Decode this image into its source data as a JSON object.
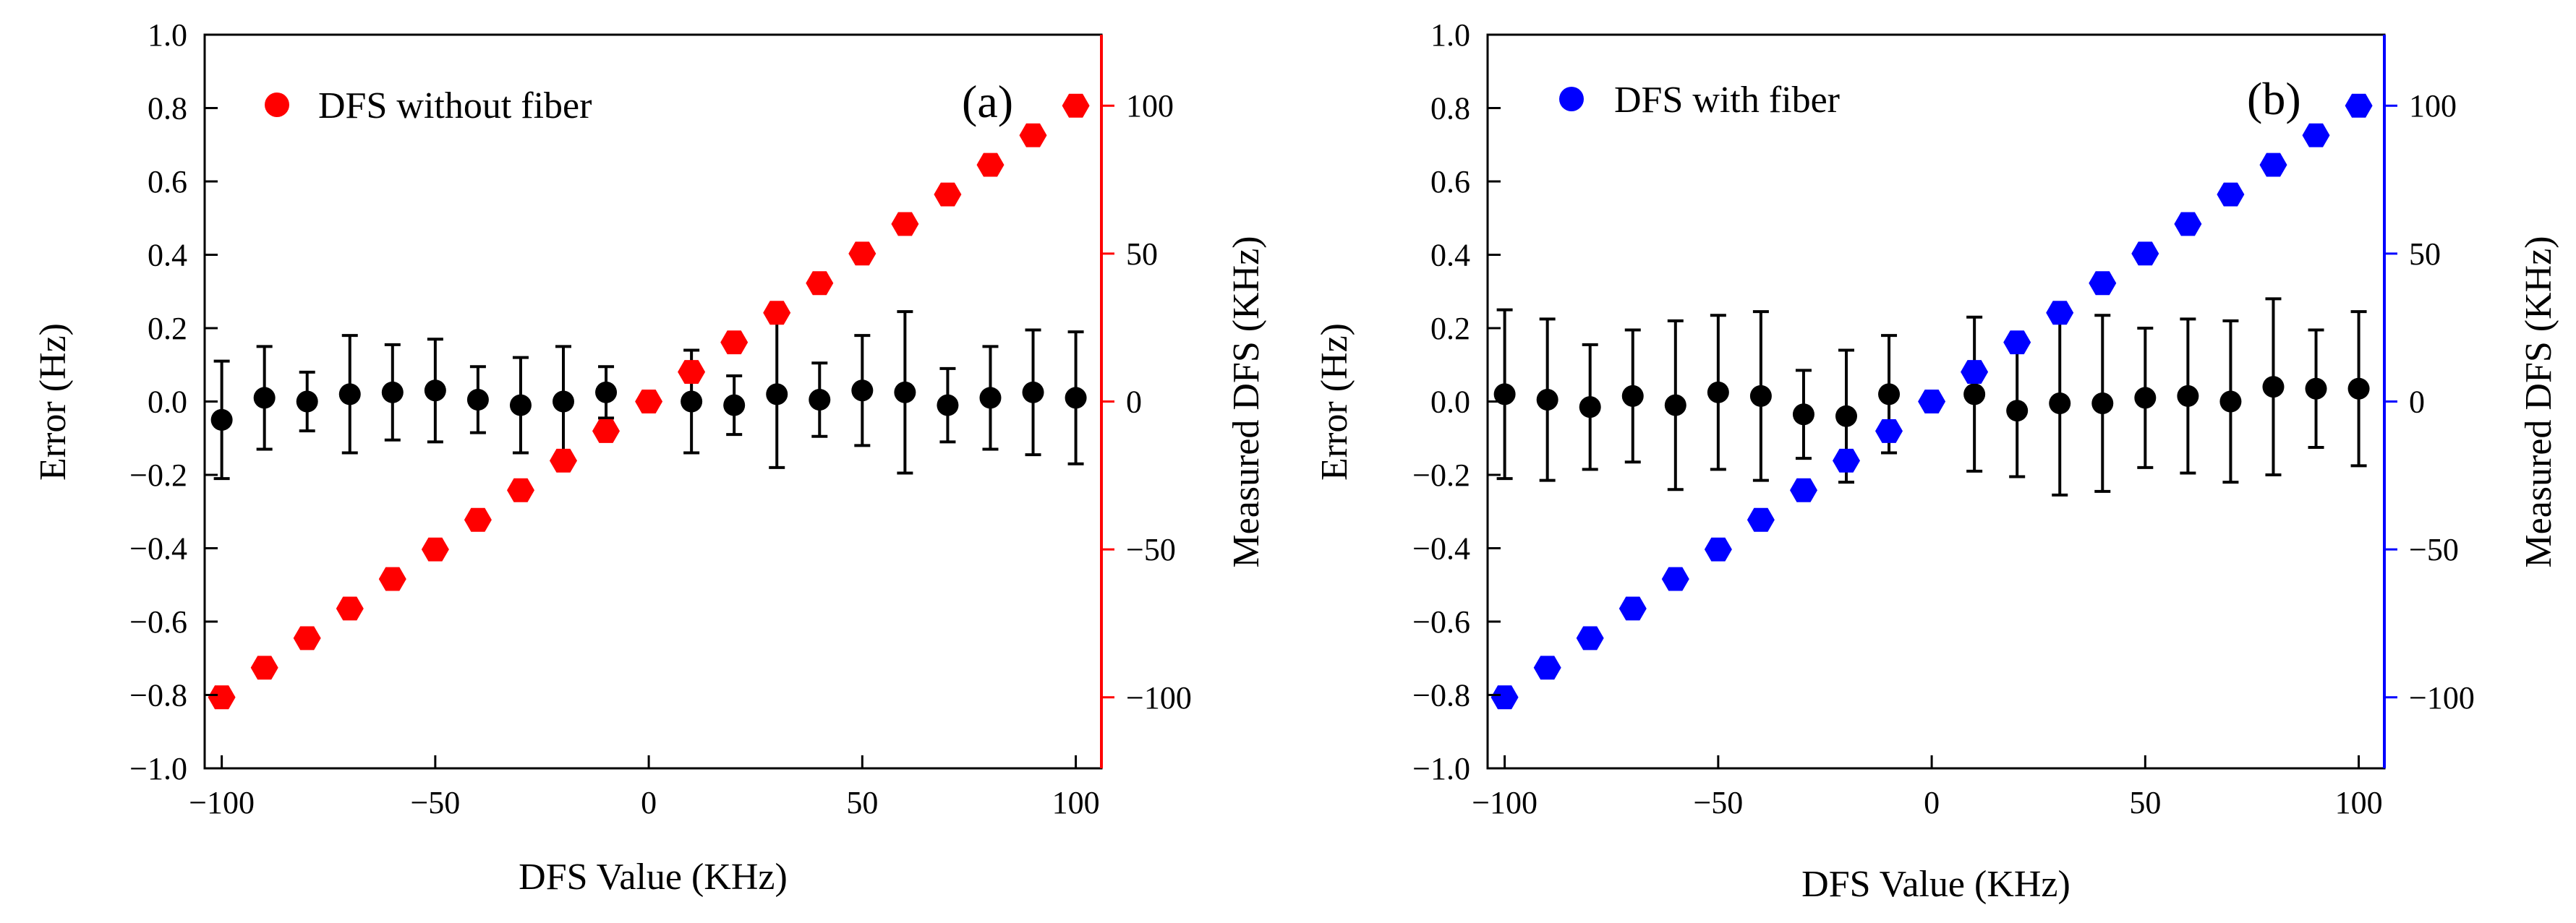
{
  "chart_data": [
    {
      "type": "scatter",
      "panel_label": "(a)",
      "xlabel": "DFS Value (KHz)",
      "ylabel": "Error (Hz)",
      "y2label": "Measured DFS (KHz)",
      "xlim": [
        -104,
        106
      ],
      "ylim": [
        -1.0,
        1.0
      ],
      "y2lim": [
        -124,
        124
      ],
      "xticks": [
        -100,
        -50,
        0,
        50,
        100
      ],
      "xtick_labels": [
        "−100",
        "−50",
        "0",
        "50",
        "100"
      ],
      "yticks": [
        -1.0,
        -0.8,
        -0.6,
        -0.4,
        -0.2,
        0.0,
        0.2,
        0.4,
        0.6,
        0.8,
        1.0
      ],
      "ytick_labels": [
        "−1.0",
        "−0.8",
        "−0.6",
        "−0.4",
        "−0.2",
        "0.0",
        "0.2",
        "0.4",
        "0.6",
        "0.8",
        "1.0"
      ],
      "y2ticks": [
        -100,
        -50,
        0,
        50,
        100
      ],
      "y2tick_labels": [
        "−100",
        "−50",
        "0",
        "50",
        "100"
      ],
      "accent_color": "#ff0000",
      "legend": {
        "location": "top-left",
        "entry": "DFS without fiber"
      },
      "series": [
        {
          "name": "Error",
          "axis": "left",
          "color": "#000000",
          "marker": "circle",
          "x": [
            -100,
            -90,
            -80,
            -70,
            -60,
            -50,
            -40,
            -30,
            -20,
            -10,
            10,
            20,
            30,
            40,
            50,
            60,
            70,
            80,
            90,
            100
          ],
          "y": [
            -0.05,
            0.01,
            0.0,
            0.02,
            0.025,
            0.03,
            0.005,
            -0.01,
            0.0,
            0.025,
            0.0,
            -0.01,
            0.02,
            0.005,
            0.03,
            0.025,
            -0.01,
            0.01,
            0.025,
            0.01
          ],
          "err": [
            0.16,
            0.14,
            0.08,
            0.16,
            0.13,
            0.14,
            0.09,
            0.13,
            0.15,
            0.07,
            0.14,
            0.08,
            0.2,
            0.1,
            0.15,
            0.22,
            0.1,
            0.14,
            0.17,
            0.18
          ]
        },
        {
          "name": "DFS without fiber",
          "axis": "right",
          "color": "#ff0000",
          "marker": "hexagon",
          "x": [
            -100,
            -90,
            -80,
            -70,
            -60,
            -50,
            -40,
            -30,
            -20,
            -10,
            0,
            10,
            20,
            30,
            40,
            50,
            60,
            70,
            80,
            90,
            100
          ],
          "y": [
            -100,
            -90,
            -80,
            -70,
            -60,
            -50,
            -40,
            -30,
            -20,
            -10,
            0,
            10,
            20,
            30,
            40,
            50,
            60,
            70,
            80,
            90,
            100
          ]
        }
      ]
    },
    {
      "type": "scatter",
      "panel_label": "(b)",
      "xlabel": "DFS Value (KHz)",
      "ylabel": "Error (Hz)",
      "y2label": "Measured DFS (KHz)",
      "xlim": [
        -104,
        106
      ],
      "ylim": [
        -1.0,
        1.0
      ],
      "y2lim": [
        -124,
        124
      ],
      "xticks": [
        -100,
        -50,
        0,
        50,
        100
      ],
      "xtick_labels": [
        "−100",
        "−50",
        "0",
        "50",
        "100"
      ],
      "yticks": [
        -1.0,
        -0.8,
        -0.6,
        -0.4,
        -0.2,
        0.0,
        0.2,
        0.4,
        0.6,
        0.8,
        1.0
      ],
      "ytick_labels": [
        "−1.0",
        "−0.8",
        "−0.6",
        "−0.4",
        "−0.2",
        "0.0",
        "0.2",
        "0.4",
        "0.6",
        "0.8",
        "1.0"
      ],
      "y2ticks": [
        -100,
        -50,
        0,
        50,
        100
      ],
      "y2tick_labels": [
        "−100",
        "−50",
        "0",
        "50",
        "100"
      ],
      "accent_color": "#0000ff",
      "legend": {
        "location": "top-left",
        "entry": "DFS with fiber"
      },
      "series": [
        {
          "name": "Error",
          "axis": "left",
          "color": "#000000",
          "marker": "circle",
          "x": [
            -100,
            -90,
            -80,
            -70,
            -60,
            -50,
            -40,
            -30,
            -20,
            -10,
            10,
            20,
            30,
            40,
            50,
            60,
            70,
            80,
            90,
            100
          ],
          "y": [
            0.02,
            0.005,
            -0.015,
            0.015,
            -0.01,
            0.025,
            0.015,
            -0.035,
            -0.04,
            0.02,
            0.02,
            -0.025,
            -0.005,
            -0.005,
            0.01,
            0.015,
            0.0,
            0.04,
            0.035,
            0.035
          ],
          "err": [
            0.23,
            0.22,
            0.17,
            0.18,
            0.23,
            0.21,
            0.23,
            0.12,
            0.18,
            0.16,
            0.21,
            0.18,
            0.25,
            0.24,
            0.19,
            0.21,
            0.22,
            0.24,
            0.16,
            0.21
          ]
        },
        {
          "name": "DFS with fiber",
          "axis": "right",
          "color": "#0000ff",
          "marker": "hexagon",
          "x": [
            -100,
            -90,
            -80,
            -70,
            -60,
            -50,
            -40,
            -30,
            -20,
            -10,
            0,
            10,
            20,
            30,
            40,
            50,
            60,
            70,
            80,
            90,
            100
          ],
          "y": [
            -100,
            -90,
            -80,
            -70,
            -60,
            -50,
            -40,
            -30,
            -20,
            -10,
            0,
            10,
            20,
            30,
            40,
            50,
            60,
            70,
            80,
            90,
            100
          ]
        }
      ]
    }
  ]
}
